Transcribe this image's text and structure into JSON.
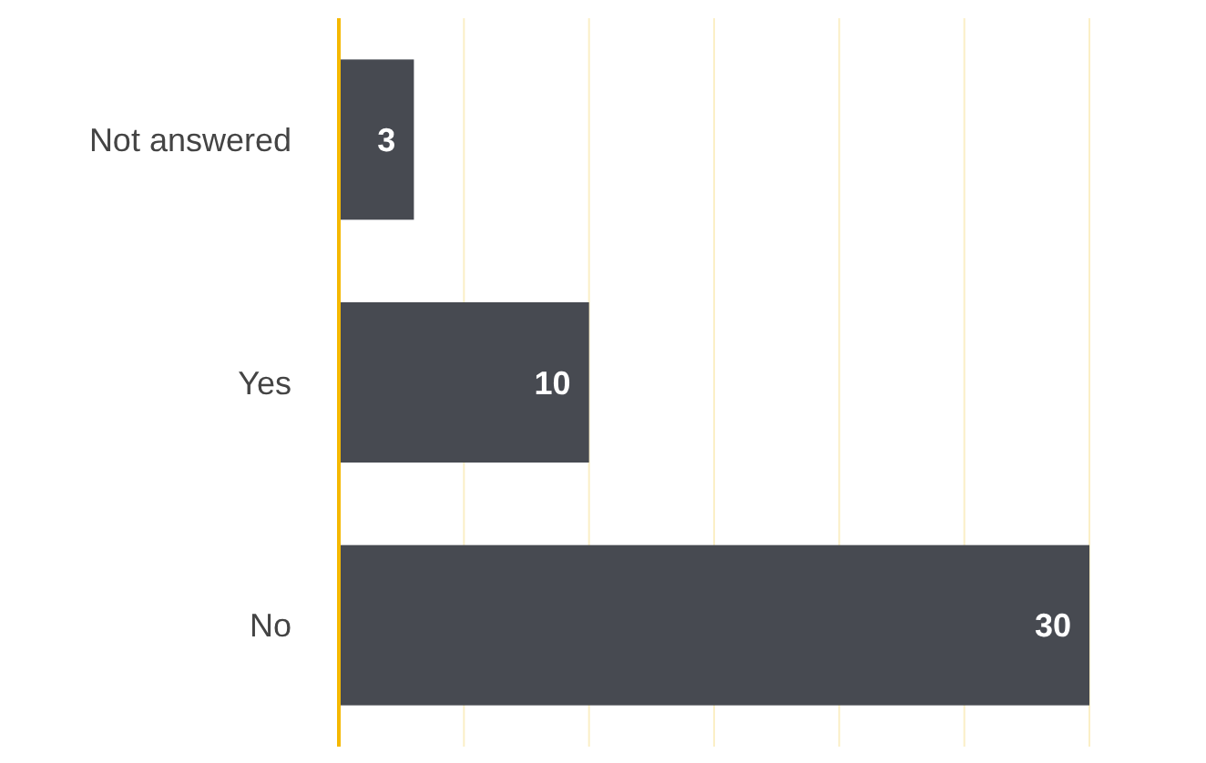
{
  "chart_data": {
    "type": "bar",
    "orientation": "horizontal",
    "categories": [
      "Not answered",
      "Yes",
      "No"
    ],
    "values": [
      3,
      10,
      30
    ],
    "color": "#474a51",
    "xlim": [
      0,
      30
    ],
    "xticks": [
      {
        "value": 0,
        "label": null
      },
      {
        "value": 5,
        "label": null
      },
      {
        "value": 10,
        "label": null
      },
      {
        "value": 15,
        "label": null
      },
      {
        "value": 20,
        "label": null
      },
      {
        "value": 25,
        "label": null
      },
      {
        "value": 30,
        "label": null
      }
    ],
    "grid": "x",
    "tick_labels": "y",
    "data_labels": true
  }
}
